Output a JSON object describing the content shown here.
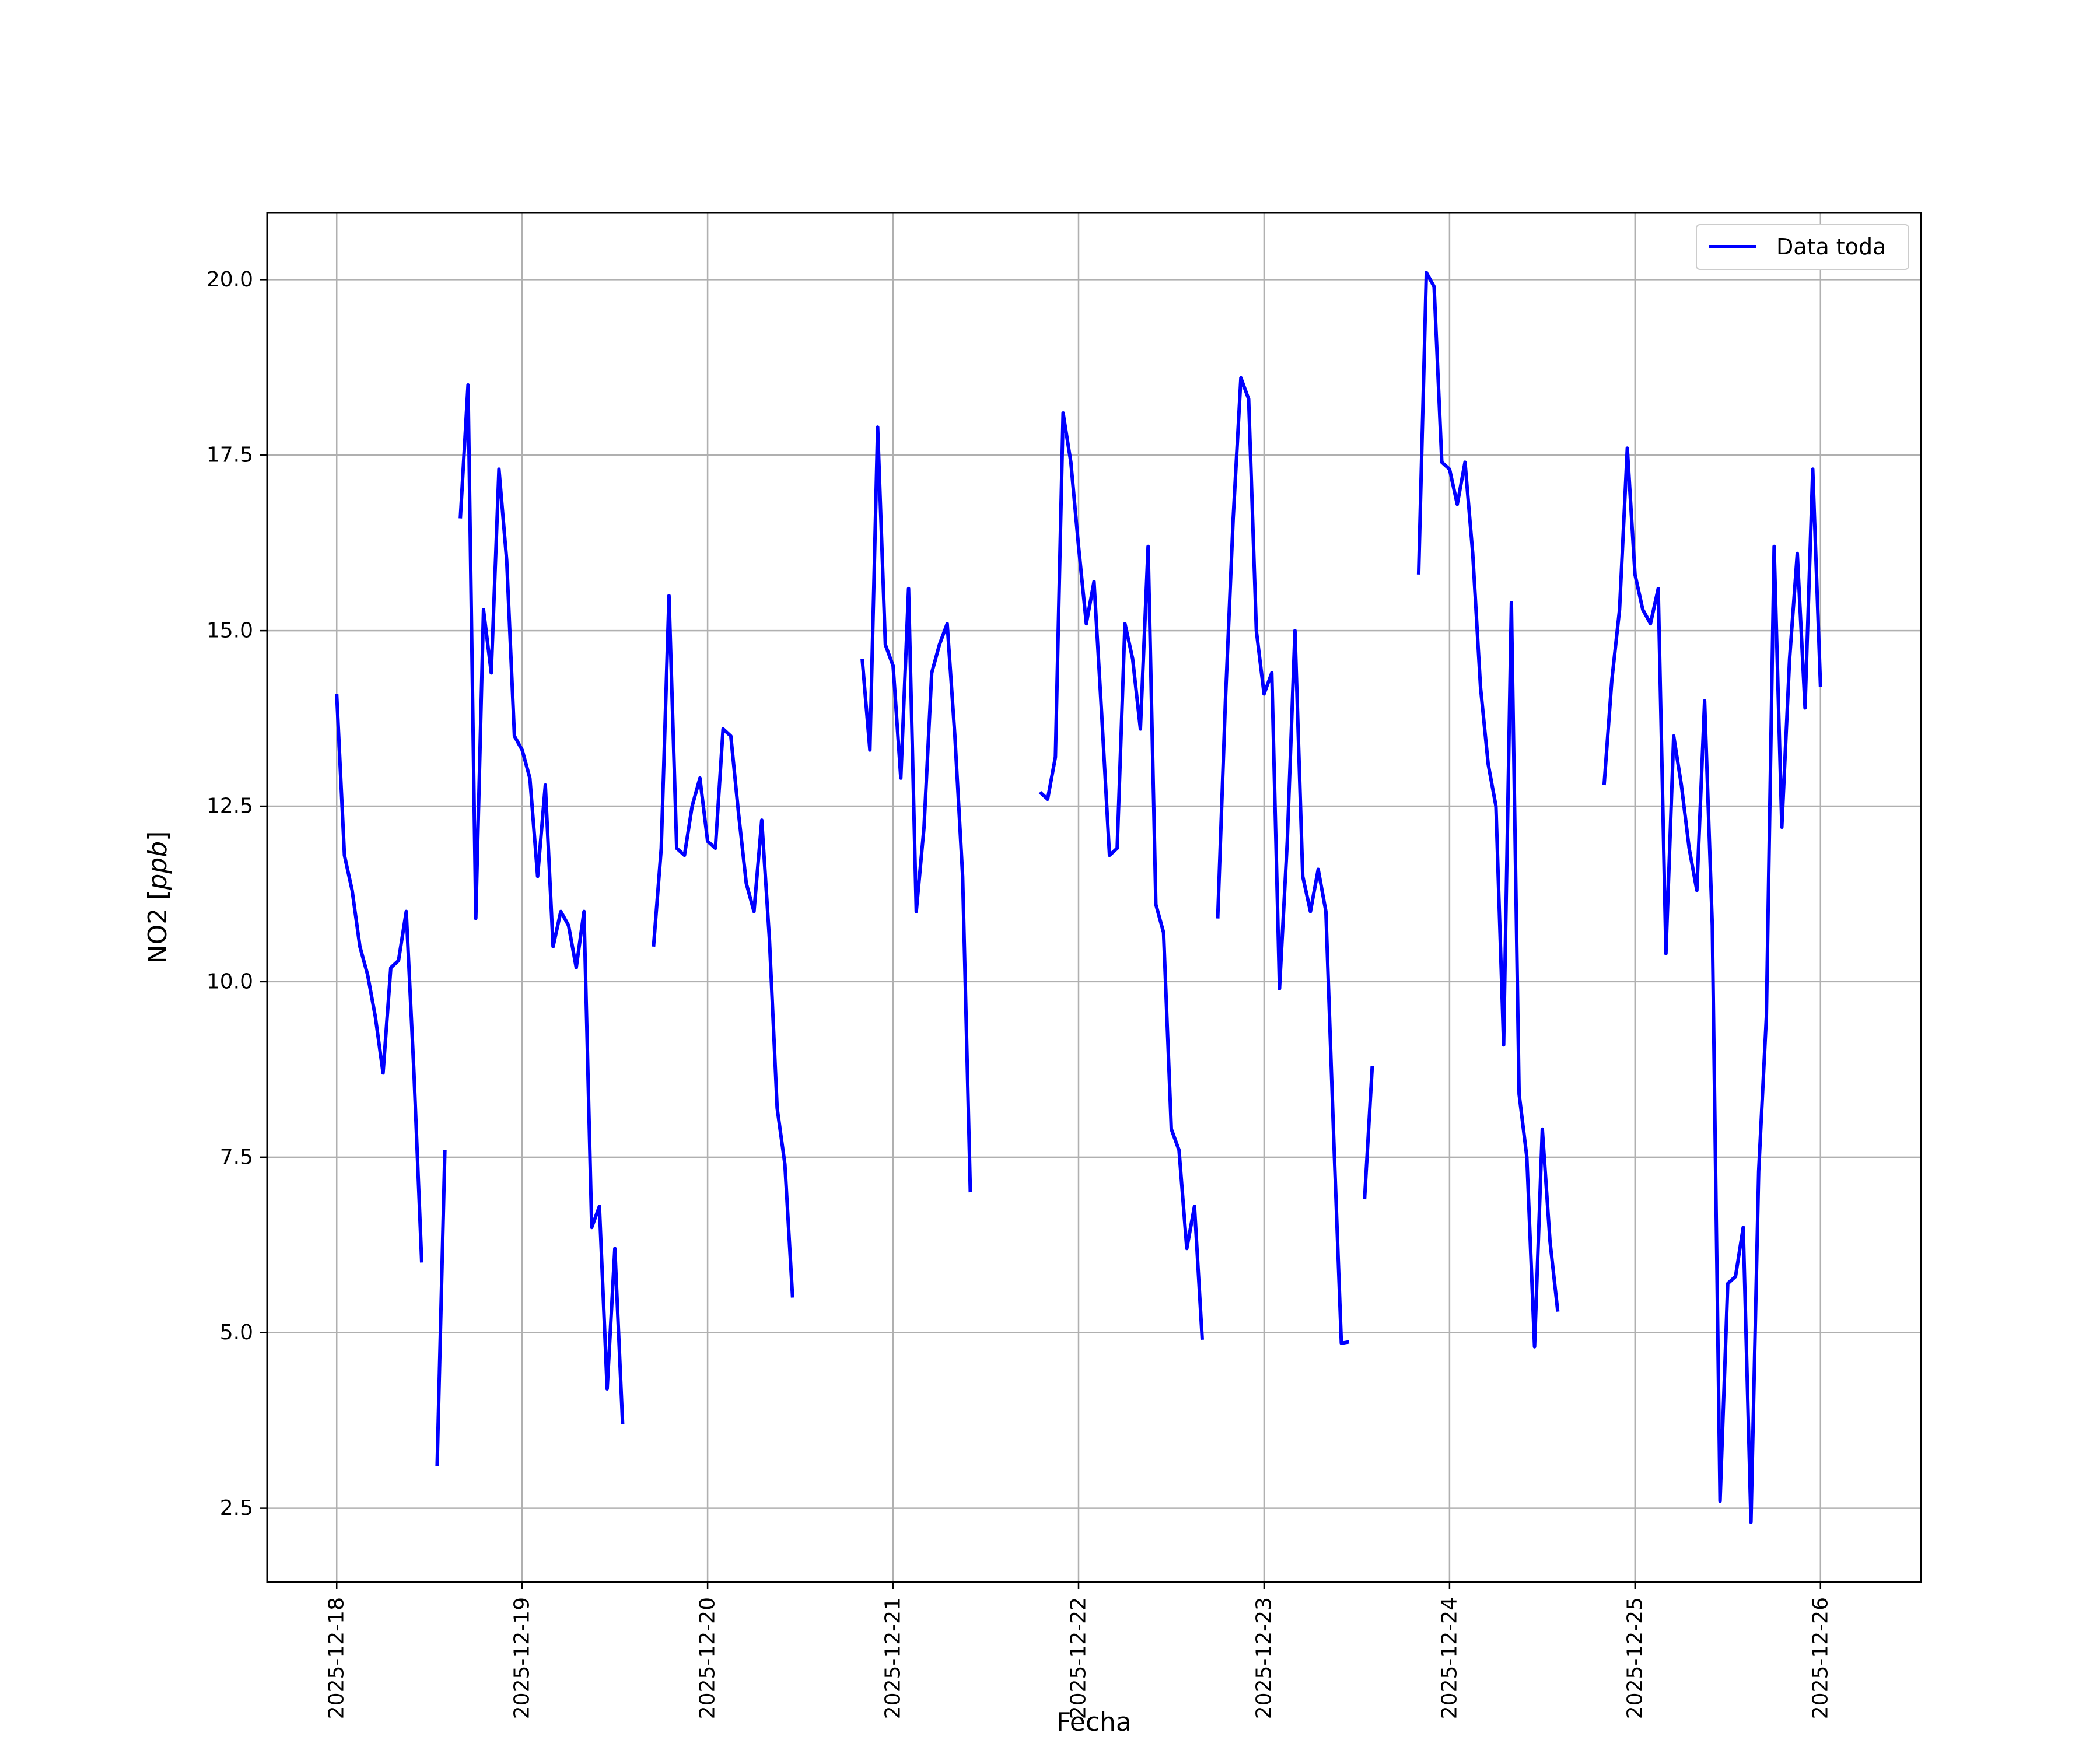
{
  "chart_data": {
    "type": "line",
    "xlabel": "Fecha",
    "ylabel": "NO2 [ppb]",
    "ylabel_parts": {
      "name": "NO2 [",
      "unit": "ppb",
      "close": "]"
    },
    "x_axis_type": "date",
    "x_ticks": [
      "2025-12-18",
      "2025-12-19",
      "2025-12-20",
      "2025-12-21",
      "2025-12-22",
      "2025-12-23",
      "2025-12-24",
      "2025-12-25",
      "2025-12-26"
    ],
    "y_ticks": [
      "2.5",
      "5.0",
      "7.5",
      "10.0",
      "12.5",
      "15.0",
      "17.5",
      "20.0"
    ],
    "xlim": [
      "2025-12-17 15:00",
      "2025-12-26 13:00"
    ],
    "ylim": [
      1.45,
      20.95
    ],
    "grid": true,
    "legend_position": "upper right",
    "series": [
      {
        "name": "Data toda",
        "color": "#0000ff",
        "segments": [
          [
            [
              "2025-12-18 00:00",
              14.1
            ],
            [
              "2025-12-18 01:00",
              11.8
            ],
            [
              "2025-12-18 02:00",
              11.3
            ],
            [
              "2025-12-18 03:00",
              10.5
            ],
            [
              "2025-12-18 04:00",
              10.1
            ],
            [
              "2025-12-18 05:00",
              9.5
            ],
            [
              "2025-12-18 06:00",
              8.7
            ],
            [
              "2025-12-18 07:00",
              10.2
            ],
            [
              "2025-12-18 08:00",
              10.3
            ],
            [
              "2025-12-18 09:00",
              11.0
            ],
            [
              "2025-12-18 10:00",
              8.7
            ],
            [
              "2025-12-18 11:00",
              6.0
            ]
          ],
          [
            [
              "2025-12-18 13:00",
              3.1
            ],
            [
              "2025-12-18 14:00",
              7.6
            ]
          ],
          [
            [
              "2025-12-18 16:00",
              16.6
            ],
            [
              "2025-12-18 17:00",
              18.5
            ],
            [
              "2025-12-18 18:00",
              10.9
            ],
            [
              "2025-12-18 19:00",
              15.3
            ],
            [
              "2025-12-18 20:00",
              14.4
            ],
            [
              "2025-12-18 21:00",
              17.3
            ],
            [
              "2025-12-18 22:00",
              16.0
            ],
            [
              "2025-12-18 23:00",
              13.5
            ],
            [
              "2025-12-19 00:00",
              13.3
            ],
            [
              "2025-12-19 01:00",
              12.9
            ],
            [
              "2025-12-19 02:00",
              11.5
            ],
            [
              "2025-12-19 03:00",
              12.8
            ],
            [
              "2025-12-19 04:00",
              10.5
            ],
            [
              "2025-12-19 05:00",
              11.0
            ],
            [
              "2025-12-19 06:00",
              10.8
            ],
            [
              "2025-12-19 07:00",
              10.2
            ],
            [
              "2025-12-19 08:00",
              11.0
            ],
            [
              "2025-12-19 09:00",
              6.5
            ],
            [
              "2025-12-19 10:00",
              6.8
            ],
            [
              "2025-12-19 11:00",
              4.2
            ],
            [
              "2025-12-19 12:00",
              6.2
            ],
            [
              "2025-12-19 13:00",
              3.7
            ]
          ],
          [
            [
              "2025-12-19 17:00",
              10.5
            ],
            [
              "2025-12-19 18:00",
              11.9
            ],
            [
              "2025-12-19 19:00",
              15.5
            ],
            [
              "2025-12-19 20:00",
              11.9
            ],
            [
              "2025-12-19 21:00",
              11.8
            ],
            [
              "2025-12-19 22:00",
              12.5
            ],
            [
              "2025-12-19 23:00",
              12.9
            ],
            [
              "2025-12-20 00:00",
              12.0
            ],
            [
              "2025-12-20 01:00",
              11.9
            ],
            [
              "2025-12-20 02:00",
              13.6
            ],
            [
              "2025-12-20 03:00",
              13.5
            ],
            [
              "2025-12-20 04:00",
              12.4
            ],
            [
              "2025-12-20 05:00",
              11.4
            ],
            [
              "2025-12-20 06:00",
              11.0
            ],
            [
              "2025-12-20 07:00",
              12.3
            ],
            [
              "2025-12-20 08:00",
              10.6
            ],
            [
              "2025-12-20 09:00",
              8.2
            ],
            [
              "2025-12-20 10:00",
              7.4
            ],
            [
              "2025-12-20 11:00",
              5.5
            ]
          ],
          [
            [
              "2025-12-20 20:00",
              14.6
            ],
            [
              "2025-12-20 21:00",
              13.3
            ],
            [
              "2025-12-20 22:00",
              17.9
            ],
            [
              "2025-12-20 23:00",
              14.8
            ],
            [
              "2025-12-21 00:00",
              14.5
            ],
            [
              "2025-12-21 01:00",
              12.9
            ],
            [
              "2025-12-21 02:00",
              15.6
            ],
            [
              "2025-12-21 03:00",
              11.0
            ],
            [
              "2025-12-21 04:00",
              12.2
            ],
            [
              "2025-12-21 05:00",
              14.4
            ],
            [
              "2025-12-21 06:00",
              14.8
            ],
            [
              "2025-12-21 07:00",
              15.1
            ],
            [
              "2025-12-21 08:00",
              13.5
            ],
            [
              "2025-12-21 09:00",
              11.5
            ],
            [
              "2025-12-21 10:00",
              7.0
            ]
          ],
          [
            [
              "2025-12-21 19:00",
              12.7
            ],
            [
              "2025-12-21 20:00",
              12.6
            ],
            [
              "2025-12-21 21:00",
              13.2
            ],
            [
              "2025-12-21 22:00",
              18.1
            ],
            [
              "2025-12-21 23:00",
              17.4
            ],
            [
              "2025-12-22 00:00",
              16.2
            ],
            [
              "2025-12-22 01:00",
              15.1
            ],
            [
              "2025-12-22 02:00",
              15.7
            ],
            [
              "2025-12-22 03:00",
              13.8
            ],
            [
              "2025-12-22 04:00",
              11.8
            ],
            [
              "2025-12-22 05:00",
              11.9
            ],
            [
              "2025-12-22 06:00",
              15.1
            ],
            [
              "2025-12-22 07:00",
              14.6
            ],
            [
              "2025-12-22 08:00",
              13.6
            ],
            [
              "2025-12-22 09:00",
              16.2
            ],
            [
              "2025-12-22 10:00",
              11.1
            ],
            [
              "2025-12-22 11:00",
              10.7
            ],
            [
              "2025-12-22 12:00",
              7.9
            ],
            [
              "2025-12-22 13:00",
              7.6
            ],
            [
              "2025-12-22 14:00",
              6.2
            ],
            [
              "2025-12-22 15:00",
              6.8
            ],
            [
              "2025-12-22 16:00",
              4.9
            ]
          ],
          [
            [
              "2025-12-22 18:00",
              10.9
            ],
            [
              "2025-12-22 19:00",
              14.0
            ],
            [
              "2025-12-22 20:00",
              16.6
            ],
            [
              "2025-12-22 21:00",
              18.6
            ],
            [
              "2025-12-22 22:00",
              18.3
            ],
            [
              "2025-12-22 23:00",
              15.0
            ],
            [
              "2025-12-23 00:00",
              14.1
            ],
            [
              "2025-12-23 01:00",
              14.4
            ],
            [
              "2025-12-23 02:00",
              9.9
            ],
            [
              "2025-12-23 03:00",
              12.0
            ],
            [
              "2025-12-23 04:00",
              15.0
            ],
            [
              "2025-12-23 05:00",
              11.5
            ],
            [
              "2025-12-23 06:00",
              11.0
            ],
            [
              "2025-12-23 07:00",
              11.6
            ],
            [
              "2025-12-23 08:00",
              11.0
            ],
            [
              "2025-12-23 09:00",
              7.8
            ],
            [
              "2025-12-23 10:00",
              4.85
            ],
            [
              "2025-12-23 11:00",
              4.87
            ]
          ],
          [
            [
              "2025-12-23 13:00",
              6.9
            ],
            [
              "2025-12-23 14:00",
              8.8
            ]
          ],
          [
            [
              "2025-12-23 20:00",
              15.8
            ],
            [
              "2025-12-23 21:00",
              20.1
            ],
            [
              "2025-12-23 22:00",
              19.9
            ],
            [
              "2025-12-23 23:00",
              17.4
            ],
            [
              "2025-12-24 00:00",
              17.3
            ],
            [
              "2025-12-24 01:00",
              16.8
            ],
            [
              "2025-12-24 02:00",
              17.4
            ],
            [
              "2025-12-24 03:00",
              16.1
            ],
            [
              "2025-12-24 04:00",
              14.2
            ],
            [
              "2025-12-24 05:00",
              13.1
            ],
            [
              "2025-12-24 06:00",
              12.5
            ],
            [
              "2025-12-24 07:00",
              9.1
            ],
            [
              "2025-12-24 08:00",
              15.4
            ],
            [
              "2025-12-24 09:00",
              8.4
            ],
            [
              "2025-12-24 10:00",
              7.5
            ],
            [
              "2025-12-24 11:00",
              4.8
            ],
            [
              "2025-12-24 12:00",
              7.9
            ],
            [
              "2025-12-24 13:00",
              6.3
            ],
            [
              "2025-12-24 14:00",
              5.3
            ]
          ],
          [
            [
              "2025-12-24 20:00",
              12.8
            ],
            [
              "2025-12-24 21:00",
              14.3
            ],
            [
              "2025-12-24 22:00",
              15.3
            ],
            [
              "2025-12-24 23:00",
              17.6
            ],
            [
              "2025-12-25 00:00",
              15.8
            ],
            [
              "2025-12-25 01:00",
              15.3
            ],
            [
              "2025-12-25 02:00",
              15.1
            ],
            [
              "2025-12-25 03:00",
              15.6
            ],
            [
              "2025-12-25 04:00",
              10.4
            ],
            [
              "2025-12-25 05:00",
              13.5
            ],
            [
              "2025-12-25 06:00",
              12.8
            ],
            [
              "2025-12-25 07:00",
              11.9
            ],
            [
              "2025-12-25 08:00",
              11.3
            ],
            [
              "2025-12-25 09:00",
              14.0
            ],
            [
              "2025-12-25 10:00",
              10.8
            ],
            [
              "2025-12-25 11:00",
              2.6
            ],
            [
              "2025-12-25 12:00",
              5.7
            ],
            [
              "2025-12-25 13:00",
              5.8
            ],
            [
              "2025-12-25 14:00",
              6.5
            ],
            [
              "2025-12-25 15:00",
              2.3
            ],
            [
              "2025-12-25 16:00",
              7.3
            ],
            [
              "2025-12-25 17:00",
              9.5
            ],
            [
              "2025-12-25 18:00",
              16.2
            ],
            [
              "2025-12-25 19:00",
              12.2
            ],
            [
              "2025-12-25 20:00",
              14.6
            ],
            [
              "2025-12-25 21:00",
              16.1
            ],
            [
              "2025-12-25 22:00",
              13.9
            ],
            [
              "2025-12-25 23:00",
              17.3
            ],
            [
              "2025-12-26 00:00",
              14.2
            ]
          ]
        ]
      }
    ]
  }
}
